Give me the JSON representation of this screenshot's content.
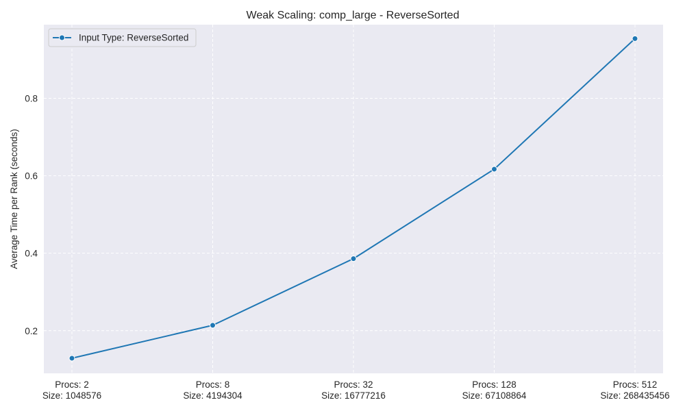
{
  "chart_data": {
    "type": "line",
    "title": "Weak Scaling: comp_large - ReverseSorted",
    "xlabel": "",
    "ylabel": "Average Time per Rank (seconds)",
    "categories": [
      [
        "Procs: 2",
        "Size: 1048576"
      ],
      [
        "Procs: 8",
        "Size: 4194304"
      ],
      [
        "Procs: 32",
        "Size: 16777216"
      ],
      [
        "Procs: 128",
        "Size: 67108864"
      ],
      [
        "Procs: 512",
        "Size: 268435456"
      ]
    ],
    "series": [
      {
        "name": "Input Type: ReverseSorted",
        "color": "#1f77b4",
        "marker": "circle",
        "values": [
          0.129,
          0.214,
          0.386,
          0.617,
          0.954
        ]
      }
    ],
    "ylim": [
      0.09,
      0.99
    ],
    "yticks": [
      0.2,
      0.4,
      0.6,
      0.8
    ],
    "grid": true,
    "grid_style": "dashed",
    "legend_position": "top-left",
    "background_color": "#eaeaf2",
    "grid_color": "#ffffff"
  }
}
